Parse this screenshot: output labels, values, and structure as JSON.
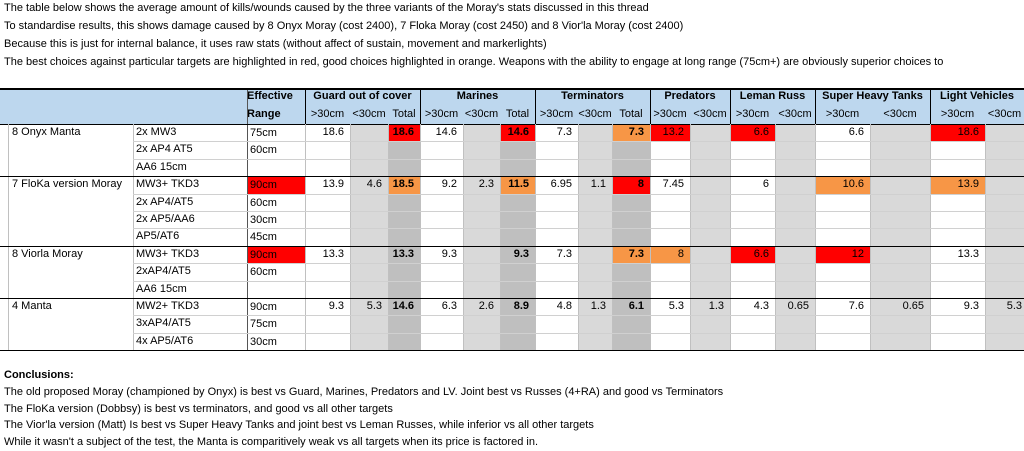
{
  "intro": [
    "The table below shows the average amount of kills/wounds caused by the three variants of the Moray's stats discussed in this thread",
    "To standardise results, this shows damage caused by 8 Onyx Moray (cost 2400), 7 Floka Moray (cost 2450) and 8 Vior'la Moray (cost 2400)",
    "Because this is just for internal balance, it uses raw stats (without affect of sustain, movement and markerlights)",
    "The best choices against particular targets are highlighted in red, good choices highlighted in orange. Weapons with the ability to engage at long range (75cm+) are obviously superior choices to"
  ],
  "table": {
    "header": {
      "effective": "Effective",
      "range": "Range",
      "groups": [
        {
          "name": "Guard out of cover",
          "cols": [
            ">30cm",
            "<30cm",
            "Total"
          ]
        },
        {
          "name": "Marines",
          "cols": [
            ">30cm",
            "<30cm",
            "Total"
          ]
        },
        {
          "name": "Terminators",
          "cols": [
            ">30cm",
            "<30cm",
            "Total"
          ]
        },
        {
          "name": "Predators",
          "cols": [
            ">30cm",
            "<30cm"
          ]
        },
        {
          "name": "Leman Russ",
          "cols": [
            ">30cm",
            "<30cm"
          ]
        },
        {
          "name": "Super Heavy Tanks",
          "cols": [
            ">30cm",
            "<30cm"
          ]
        },
        {
          "name": "Light Vehicles",
          "cols": [
            ">30cm",
            "<30cm"
          ]
        }
      ]
    },
    "rows": [
      {
        "name": "8 Onyx Manta",
        "lines": [
          {
            "weapon": "2x MW3",
            "range": "75cm"
          },
          {
            "weapon": "2x AP4 AT5",
            "range": "60cm"
          },
          {
            "weapon": "AA6 15cm",
            "range": null
          }
        ],
        "range_highlight": null,
        "cells": [
          "18.6",
          null,
          "18.6",
          "14.6",
          null,
          "14.6",
          "7.3",
          null,
          "7.3",
          "13.2",
          null,
          "6.6",
          null,
          "6.6",
          null,
          "18.6",
          null
        ],
        "highlights": {
          "2": "red",
          "5": "red",
          "8": "orange",
          "9": "red",
          "11": "red",
          "15": "red"
        }
      },
      {
        "name": "7 FloKa version Moray",
        "lines": [
          {
            "weapon": "MW3+ TKD3",
            "range": "90cm"
          },
          {
            "weapon": "2x AP4/AT5",
            "range": "60cm"
          },
          {
            "weapon": "2x AP5/AA6",
            "range": "30cm"
          },
          {
            "weapon": "AP5/AT6",
            "range": "45cm"
          }
        ],
        "range_highlight": "red",
        "cells": [
          "13.9",
          "4.6",
          "18.5",
          "9.2",
          "2.3",
          "11.5",
          "6.95",
          "1.1",
          "8",
          "7.45",
          null,
          "6",
          null,
          "10.6",
          null,
          "13.9",
          null
        ],
        "highlights": {
          "2": "orange",
          "5": "orange",
          "8": "red",
          "13": "orange",
          "15": "orange"
        }
      },
      {
        "name": "8 Viorla Moray",
        "lines": [
          {
            "weapon": "MW3+ TKD3",
            "range": "90cm"
          },
          {
            "weapon": "2xAP4/AT5",
            "range": "60cm"
          },
          {
            "weapon": "AA6 15cm",
            "range": null
          }
        ],
        "range_highlight": "red",
        "cells": [
          "13.3",
          null,
          "13.3",
          "9.3",
          null,
          "9.3",
          "7.3",
          null,
          "7.3",
          "8",
          null,
          "6.6",
          null,
          "12",
          null,
          "13.3",
          null
        ],
        "highlights": {
          "8": "orange",
          "9": "orange",
          "11": "red",
          "13": "red"
        }
      },
      {
        "name": "4 Manta",
        "lines": [
          {
            "weapon": "MW2+ TKD3",
            "range": "90cm"
          },
          {
            "weapon": "3xAP4/AT5",
            "range": "75cm"
          },
          {
            "weapon": "4x AP5/AT6",
            "range": "30cm"
          }
        ],
        "range_highlight": null,
        "cells": [
          "9.3",
          "5.3",
          "14.6",
          "6.3",
          "2.6",
          "8.9",
          "4.8",
          "1.3",
          "6.1",
          "5.3",
          "1.3",
          "4.3",
          "0.65",
          "7.6",
          "0.65",
          "9.3",
          "5.3"
        ],
        "highlights": {}
      }
    ]
  },
  "conclusions": {
    "title": "Conclusions:",
    "lines": [
      "The old proposed Moray (championed by Onyx) is best vs Guard, Marines, Predators and LV. Joint best vs Russes (4+RA) and good vs Terminators",
      "The FloKa version (Dobbsy) is best vs terminators, and good vs all other targets",
      "The Vior'la version (Matt) Is best vs Super Heavy Tanks and joint best vs Leman Russes, while inferior vs all other targets",
      "While it wasn't a subject of the test, the Manta is comparitively weak vs all targets when its price is factored in."
    ]
  }
}
